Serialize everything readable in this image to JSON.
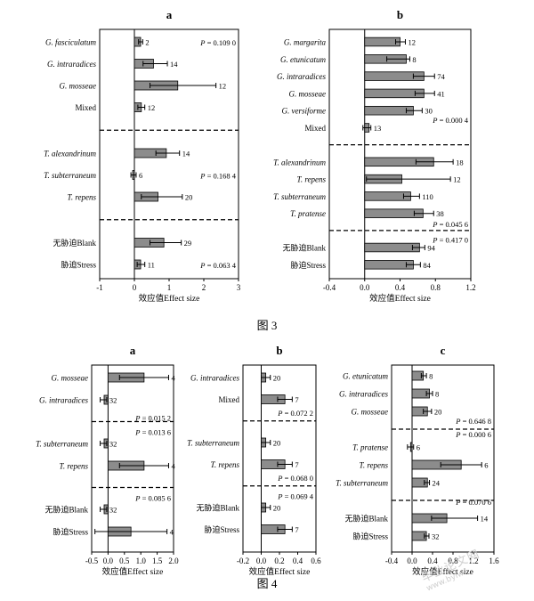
{
  "figures": [
    {
      "caption": "图 3"
    },
    {
      "caption": "图 4"
    }
  ],
  "watermark": {
    "text": "毕业论文网",
    "url": "www.bylw"
  },
  "colors": {
    "bar": "#8c8c8c",
    "bar_stroke": "#000000",
    "axis": "#000000"
  },
  "chart_data": [
    {
      "type": "bar",
      "orientation": "horizontal",
      "panel": "a",
      "figure": "图 3",
      "xlabel": "效应值Effect size",
      "xlim": [
        -1,
        3
      ],
      "xticks": [
        -1,
        0,
        1,
        2,
        3
      ],
      "bars": [
        {
          "label": "G. fasciculatum",
          "italic": true,
          "value": 0.18,
          "err_lo": 0.06,
          "err_hi": 0.06,
          "n": "2"
        },
        {
          "label": "G. intraradices",
          "italic": true,
          "value": 0.55,
          "err_lo": 0.3,
          "err_hi": 0.4,
          "n": "14"
        },
        {
          "label": "G. mosseae",
          "italic": true,
          "value": 1.25,
          "err_lo": 0.8,
          "err_hi": 1.1,
          "n": "12"
        },
        {
          "label": "Mixed",
          "italic": false,
          "value": 0.2,
          "err_lo": 0.1,
          "err_hi": 0.1,
          "n": "12"
        },
        {
          "label": "T. alexandrinum",
          "italic": true,
          "value": 0.92,
          "err_lo": 0.3,
          "err_hi": 0.38,
          "n": "14"
        },
        {
          "label": "T. subterraneum",
          "italic": true,
          "value": -0.05,
          "err_lo": 0.05,
          "err_hi": 0.1,
          "n": "6"
        },
        {
          "label": "T. repens",
          "italic": true,
          "value": 0.68,
          "err_lo": 0.48,
          "err_hi": 0.7,
          "n": "20"
        },
        {
          "label": "无胁迫Blank",
          "italic": false,
          "value": 0.85,
          "err_lo": 0.4,
          "err_hi": 0.5,
          "n": "29"
        },
        {
          "label": "胁迫Stress",
          "italic": false,
          "value": 0.18,
          "err_lo": 0.1,
          "err_hi": 0.12,
          "n": "11"
        }
      ],
      "separators_after": [
        3,
        6
      ],
      "pvalues": [
        {
          "text": "P = 0.109 0",
          "after": 0
        },
        {
          "text": "P = 0.168 4",
          "after": 5
        },
        {
          "text": "P = 0.063 4",
          "after": 8
        }
      ]
    },
    {
      "type": "bar",
      "orientation": "horizontal",
      "panel": "b",
      "figure": "图 3",
      "xlabel": "效应值Effect size",
      "xlim": [
        -0.4,
        1.2
      ],
      "xticks": [
        "-0.4",
        "0.0",
        "0.4",
        "0.8",
        "1.2"
      ],
      "xtick_values": [
        -0.4,
        0,
        0.4,
        0.8,
        1.2
      ],
      "bars": [
        {
          "label": "G. margarita",
          "italic": true,
          "value": 0.4,
          "err_lo": 0.05,
          "err_hi": 0.06,
          "n": "12"
        },
        {
          "label": "G. etunicatum",
          "italic": true,
          "value": 0.47,
          "err_lo": 0.22,
          "err_hi": 0.04,
          "n": "8"
        },
        {
          "label": "G. intraradices",
          "italic": true,
          "value": 0.67,
          "err_lo": 0.12,
          "err_hi": 0.12,
          "n": "74"
        },
        {
          "label": "G. mosseae",
          "italic": true,
          "value": 0.67,
          "err_lo": 0.1,
          "err_hi": 0.12,
          "n": "41"
        },
        {
          "label": "G. versiforme",
          "italic": true,
          "value": 0.55,
          "err_lo": 0.08,
          "err_hi": 0.1,
          "n": "30"
        },
        {
          "label": "Mixed",
          "italic": false,
          "value": 0.05,
          "err_lo": 0.07,
          "err_hi": 0.02,
          "n": "13"
        },
        {
          "label": "T. alexandrinum",
          "italic": true,
          "value": 0.78,
          "err_lo": 0.2,
          "err_hi": 0.22,
          "n": "18"
        },
        {
          "label": "T. repens",
          "italic": true,
          "value": 0.42,
          "err_lo": 0.4,
          "err_hi": 0.55,
          "n": "12"
        },
        {
          "label": "T. subterraneum",
          "italic": true,
          "value": 0.52,
          "err_lo": 0.08,
          "err_hi": 0.1,
          "n": "110"
        },
        {
          "label": "T. pratense",
          "italic": true,
          "value": 0.66,
          "err_lo": 0.1,
          "err_hi": 0.12,
          "n": "38"
        },
        {
          "label": "无胁迫Blank",
          "italic": false,
          "value": 0.62,
          "err_lo": 0.08,
          "err_hi": 0.06,
          "n": "94"
        },
        {
          "label": "胁迫Stress",
          "italic": false,
          "value": 0.55,
          "err_lo": 0.08,
          "err_hi": 0.08,
          "n": "84"
        }
      ],
      "separators_after": [
        5,
        9
      ],
      "pvalues": [
        {
          "text": "P = 0.000 4",
          "after": 4.5
        },
        {
          "text": "P = 0.045 6",
          "after": 9.3
        },
        {
          "text": "P = 0.417 0",
          "after": 9.75
        }
      ]
    },
    {
      "type": "bar",
      "orientation": "horizontal",
      "panel": "a",
      "figure": "图 4",
      "xlabel": "效应值Effect size",
      "xlim": [
        -0.5,
        2.0
      ],
      "xticks": [
        "-0.5",
        "0.0",
        "0.5",
        "1.0",
        "1.5",
        "2.0"
      ],
      "xtick_values": [
        -0.5,
        0,
        0.5,
        1.0,
        1.5,
        2.0
      ],
      "bars": [
        {
          "label": "G. mosseae",
          "italic": true,
          "value": 1.1,
          "err_lo": 0.75,
          "err_hi": 0.75,
          "n": "4"
        },
        {
          "label": "G. intraradices",
          "italic": true,
          "value": -0.12,
          "err_lo": 0.12,
          "err_hi": 0.08,
          "n": "32"
        },
        {
          "label": "T. subterraneum",
          "italic": true,
          "value": -0.12,
          "err_lo": 0.12,
          "err_hi": 0.08,
          "n": "32"
        },
        {
          "label": "T. repens",
          "italic": true,
          "value": 1.1,
          "err_lo": 0.75,
          "err_hi": 0.75,
          "n": "4"
        },
        {
          "label": "无胁迫Blank",
          "italic": false,
          "value": -0.12,
          "err_lo": 0.12,
          "err_hi": 0.08,
          "n": "32"
        },
        {
          "label": "胁迫Stress",
          "italic": false,
          "value": 0.7,
          "err_lo": 1.1,
          "err_hi": 1.1,
          "n": "4"
        }
      ],
      "separators_after": [
        1,
        3
      ],
      "pvalues": [
        {
          "text": "P = 0.015 2",
          "after": 1.4
        },
        {
          "text": "P = 0.013 6",
          "after": 1.72
        },
        {
          "text": "P = 0.085 6",
          "after": 3.72
        }
      ]
    },
    {
      "type": "bar",
      "orientation": "horizontal",
      "panel": "b",
      "figure": "图 4",
      "xlabel": "效应值Effect size",
      "xlim": [
        -0.2,
        0.6
      ],
      "xticks": [
        "-0.2",
        "0.0",
        "0.2",
        "0.4",
        "0.6"
      ],
      "xtick_values": [
        -0.2,
        0,
        0.2,
        0.4,
        0.6
      ],
      "bars": [
        {
          "label": "G. intraradices",
          "italic": true,
          "value": 0.05,
          "err_lo": 0.05,
          "err_hi": 0.05,
          "n": "20"
        },
        {
          "label": "Mixed",
          "italic": false,
          "value": 0.26,
          "err_lo": 0.08,
          "err_hi": 0.08,
          "n": "7"
        },
        {
          "label": "T. subterraneum",
          "italic": true,
          "value": 0.05,
          "err_lo": 0.05,
          "err_hi": 0.05,
          "n": "20"
        },
        {
          "label": "T. repens",
          "italic": true,
          "value": 0.26,
          "err_lo": 0.08,
          "err_hi": 0.08,
          "n": "7"
        },
        {
          "label": "无胁迫Blank",
          "italic": false,
          "value": 0.05,
          "err_lo": 0.05,
          "err_hi": 0.05,
          "n": "20"
        },
        {
          "label": "胁迫Stress",
          "italic": false,
          "value": 0.26,
          "err_lo": 0.08,
          "err_hi": 0.08,
          "n": "7"
        }
      ],
      "separators_after": [
        1,
        3
      ],
      "pvalues": [
        {
          "text": "P = 0.072 2",
          "after": 1.3
        },
        {
          "text": "P = 0.068 0",
          "after": 3.3
        },
        {
          "text": "P = 0.069 4",
          "after": 3.72
        }
      ]
    },
    {
      "type": "bar",
      "orientation": "horizontal",
      "panel": "c",
      "figure": "图 4",
      "xlabel": "效应值Effect size",
      "xlim": [
        -0.4,
        1.6
      ],
      "xticks": [
        "-0.4",
        "0.0",
        "0.4",
        "0.8",
        "1.2",
        "1.6"
      ],
      "xtick_values": [
        -0.4,
        0,
        0.4,
        0.8,
        1.2,
        1.6
      ],
      "bars": [
        {
          "label": "G. etunicatum",
          "italic": true,
          "value": 0.22,
          "err_lo": 0.04,
          "err_hi": 0.06,
          "n": "8"
        },
        {
          "label": "G. intraradices",
          "italic": true,
          "value": 0.34,
          "err_lo": 0.06,
          "err_hi": 0.06,
          "n": "8"
        },
        {
          "label": "G. mosseae",
          "italic": true,
          "value": 0.3,
          "err_lo": 0.08,
          "err_hi": 0.08,
          "n": "20"
        },
        {
          "label": "T. pratense",
          "italic": true,
          "value": -0.03,
          "err_lo": 0.06,
          "err_hi": 0.06,
          "n": "6"
        },
        {
          "label": "T. repens",
          "italic": true,
          "value": 0.96,
          "err_lo": 0.4,
          "err_hi": 0.4,
          "n": "6"
        },
        {
          "label": "T. subterraneum",
          "italic": true,
          "value": 0.3,
          "err_lo": 0.06,
          "err_hi": 0.04,
          "n": "24"
        },
        {
          "label": "无胁迫Blank",
          "italic": false,
          "value": 0.68,
          "err_lo": 0.3,
          "err_hi": 0.6,
          "n": "14"
        },
        {
          "label": "胁迫Stress",
          "italic": false,
          "value": 0.28,
          "err_lo": 0.04,
          "err_hi": 0.05,
          "n": "32"
        }
      ],
      "separators_after": [
        2,
        5
      ],
      "pvalues": [
        {
          "text": "P = 0.646 8",
          "after": 2.25
        },
        {
          "text": "P = 0.000 6",
          "after": 2.62
        },
        {
          "text": "P = 0.070 6",
          "after": 5.52
        }
      ]
    }
  ]
}
